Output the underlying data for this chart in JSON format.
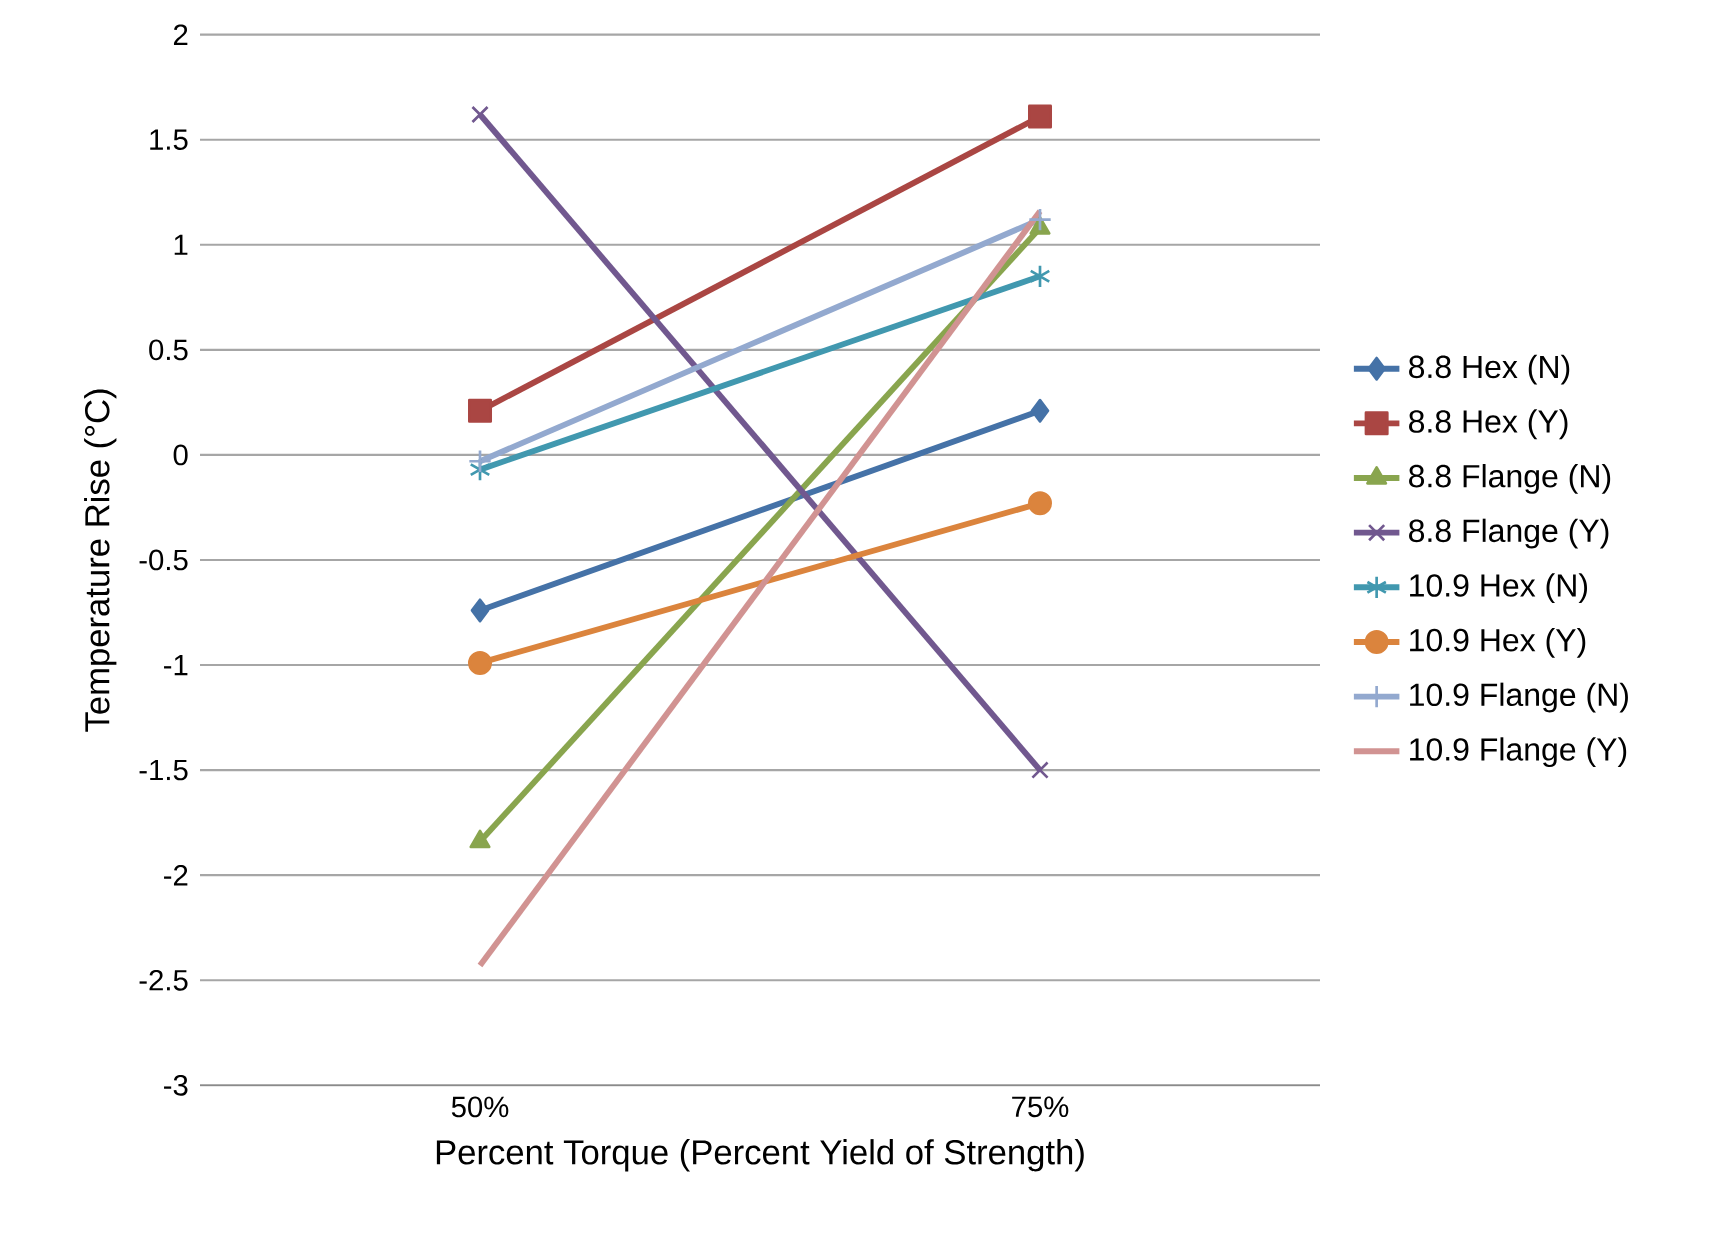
{
  "chart_data": {
    "type": "line",
    "xlabel": "Percent Torque (Percent Yield of Strength)",
    "ylabel": "Temperature Rise (°C)",
    "categories": [
      "50%",
      "75%"
    ],
    "series": [
      {
        "name": "8.8 Hex (N)",
        "color": "#4572a7",
        "marker": "diamond",
        "values": [
          -0.74,
          0.21
        ]
      },
      {
        "name": "8.8 Hex (Y)",
        "color": "#aa4643",
        "marker": "square",
        "values": [
          0.21,
          1.61
        ]
      },
      {
        "name": "8.8 Flange (N)",
        "color": "#89a54e",
        "marker": "triangle",
        "values": [
          -1.84,
          1.08
        ]
      },
      {
        "name": "8.8 Flange (Y)",
        "color": "#71588f",
        "marker": "cross",
        "values": [
          1.62,
          -1.5
        ]
      },
      {
        "name": "10.9 Hex (N)",
        "color": "#4198af",
        "marker": "cross",
        "values": [
          -0.07,
          0.85
        ]
      },
      {
        "name": "10.9 Hex (Y)",
        "color": "#db843d",
        "marker": "circle",
        "values": [
          -0.99,
          -0.23
        ]
      },
      {
        "name": "10.9 Flange (N)",
        "color": "#93a9cf",
        "marker": "plus",
        "values": [
          -0.03,
          1.12
        ]
      },
      {
        "name": "10.9 Flange (Y)",
        "color": "#d19392",
        "marker": "none",
        "values": [
          -2.43,
          1.16
        ]
      }
    ],
    "ylim": [
      -3,
      2
    ],
    "yticks": [
      -3,
      -2.5,
      -2,
      -1.5,
      -1,
      -0.5,
      0,
      0.5,
      1,
      1.5,
      2
    ],
    "grid": "y",
    "legend": "right",
    "line_style": "solid"
  }
}
